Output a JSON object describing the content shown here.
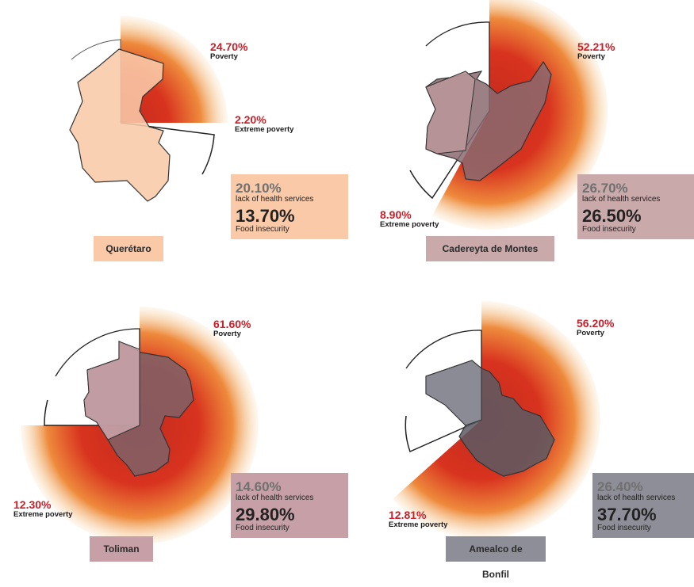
{
  "colors": {
    "poverty_label": "#c8202a",
    "glow_core": "#d8331f",
    "glow_mid": "#ee8a3c",
    "glow_outer": "#f7d4a0"
  },
  "chart_data": [
    {
      "type": "radial-map-infographic",
      "municipality": "Querétaro",
      "poverty": {
        "value": 24.7,
        "text": "24.70%",
        "label": "Poverty"
      },
      "extreme_poverty": {
        "value": 2.2,
        "text": "2.20%",
        "label": "Extreme poverty"
      },
      "lack_health": {
        "value": 20.1,
        "text": "20.10%",
        "label": "lack of health services"
      },
      "food_insecurity": {
        "value": 13.7,
        "text": "13.70%",
        "label": "Food insecurity"
      },
      "box_color": "#f9c9a8",
      "map_color": "#f9c9a8"
    },
    {
      "type": "radial-map-infographic",
      "municipality": "Cadereyta de Montes",
      "poverty": {
        "value": 52.21,
        "text": "52.21%",
        "label": "Poverty"
      },
      "extreme_poverty": {
        "value": 8.9,
        "text": "8.90%",
        "label": "Extreme poverty"
      },
      "lack_health": {
        "value": 26.7,
        "text": "26.70%",
        "label": "lack of health services"
      },
      "food_insecurity": {
        "value": 26.5,
        "text": "26.50%",
        "label": "Food insecurity"
      },
      "box_color": "#c9a9aa",
      "map_color": "#b99598"
    },
    {
      "type": "radial-map-infographic",
      "municipality": "Toliman",
      "poverty": {
        "value": 61.6,
        "text": "61.60%",
        "label": "Poverty"
      },
      "extreme_poverty": {
        "value": 12.3,
        "text": "12.30%",
        "label": "Extreme poverty"
      },
      "lack_health": {
        "value": 14.6,
        "text": "14.60%",
        "label": "lack of health services"
      },
      "food_insecurity": {
        "value": 29.8,
        "text": "29.80%",
        "label": "Food insecurity"
      },
      "box_color": "#c6a0a6",
      "map_color": "#b58f96"
    },
    {
      "type": "radial-map-infographic",
      "municipality": "Amealco de Bonfil",
      "poverty": {
        "value": 56.2,
        "text": "56.20%",
        "label": "Poverty"
      },
      "extreme_poverty": {
        "value": 12.81,
        "text": "12.81%",
        "label": "Extreme poverty"
      },
      "lack_health": {
        "value": 26.4,
        "text": "26.40%",
        "label": "lack of health services"
      },
      "food_insecurity": {
        "value": 37.7,
        "text": "37.70%",
        "label": "Food insecurity"
      },
      "box_color": "#8e8e98",
      "map_color": "#6e6e78"
    }
  ]
}
